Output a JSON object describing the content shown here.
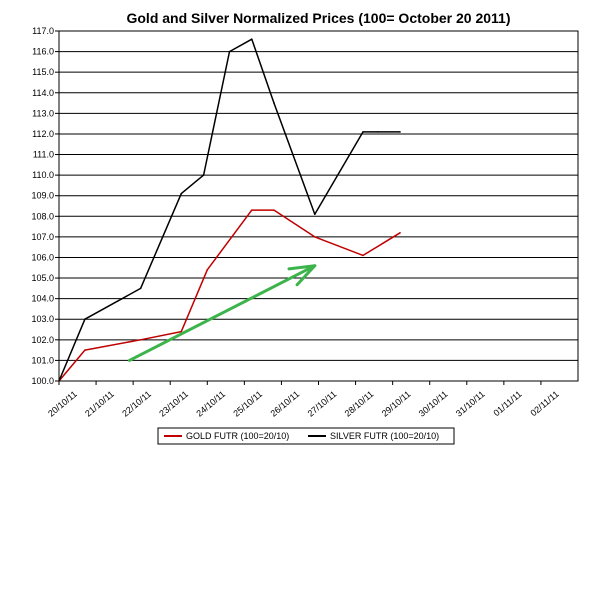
{
  "chart_data": {
    "type": "line",
    "title": "Gold and Silver Normalized Prices  (100= October 20 2011)",
    "xlabel": "",
    "ylabel": "",
    "categories": [
      "20/10/11",
      "21/10/11",
      "22/10/11",
      "23/10/11",
      "24/10/11",
      "25/10/11",
      "26/10/11",
      "27/10/11",
      "28/10/11",
      "29/10/11",
      "30/10/11",
      "31/10/11",
      "01/11/11",
      "02/11/11"
    ],
    "ylim": [
      100.0,
      117.0
    ],
    "y_ticks": [
      "100.0",
      "101.0",
      "102.0",
      "103.0",
      "104.0",
      "105.0",
      "106.0",
      "107.0",
      "108.0",
      "109.0",
      "110.0",
      "111.0",
      "112.0",
      "113.0",
      "114.0",
      "115.0",
      "116.0",
      "117.0"
    ],
    "grid": "horizontal",
    "legend_position": "bottom",
    "series": [
      {
        "name": "GOLD  FUTR (100=20/10)",
        "color": "#c00000",
        "x": [
          0,
          0.7,
          2.2,
          3.3,
          4.0,
          5.2,
          5.8,
          6.9,
          8.2,
          9.2
        ],
        "y": [
          100.0,
          101.5,
          102.0,
          102.4,
          105.4,
          108.3,
          108.3,
          107.0,
          106.1,
          107.2
        ]
      },
      {
        "name": "SILVER  FUTR (100=20/10)",
        "color": "#000000",
        "x": [
          0,
          0.7,
          2.2,
          3.3,
          3.9,
          4.6,
          5.2,
          5.8,
          6.9,
          8.2,
          8.6,
          9.2
        ],
        "y": [
          100.0,
          103.0,
          104.5,
          109.1,
          110.0,
          116.0,
          116.6,
          113.5,
          108.1,
          112.1,
          112.1,
          112.1
        ]
      }
    ],
    "annotations": [
      {
        "type": "arrow",
        "color": "#3cb44b",
        "from": [
          1.9,
          101.0
        ],
        "to": [
          6.9,
          105.6
        ]
      }
    ]
  }
}
